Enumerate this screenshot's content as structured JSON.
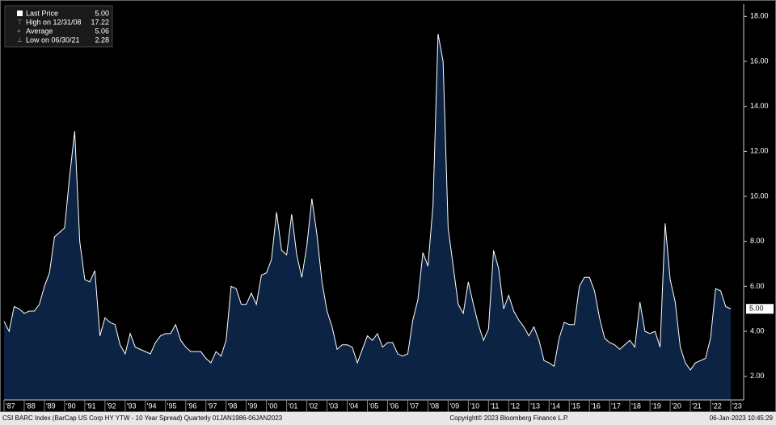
{
  "chart_data": {
    "type": "area",
    "legend": [
      {
        "label": "Last Price",
        "value": "5.00"
      },
      {
        "label": "High on 12/31/08",
        "value": "17.22"
      },
      {
        "label": "Average",
        "value": "5.06"
      },
      {
        "label": "Low on 06/30/21",
        "value": "2.28"
      }
    ],
    "last_label": "5.00",
    "footer_left": "CSI BARC Index (BarCap US Corp HY YTW - 10 Year Spread)  Quarterly 01JAN1986-06JAN2023",
    "footer_center": "Copyright© 2023 Bloomberg Finance L.P.",
    "footer_right": "06-Jan-2023 10:45:29",
    "xlim": [
      1987,
      2023.64
    ],
    "xticks": [
      {
        "value": 1987,
        "label": "'87"
      },
      {
        "value": 1988,
        "label": "'88"
      },
      {
        "value": 1989,
        "label": "'89"
      },
      {
        "value": 1990,
        "label": "'90"
      },
      {
        "value": 1991,
        "label": "'91"
      },
      {
        "value": 1992,
        "label": "'92"
      },
      {
        "value": 1993,
        "label": "'93"
      },
      {
        "value": 1994,
        "label": "'94"
      },
      {
        "value": 1995,
        "label": "'95"
      },
      {
        "value": 1996,
        "label": "'96"
      },
      {
        "value": 1997,
        "label": "'97"
      },
      {
        "value": 1998,
        "label": "'98"
      },
      {
        "value": 1999,
        "label": "'99"
      },
      {
        "value": 2000,
        "label": "'00"
      },
      {
        "value": 2001,
        "label": "'01"
      },
      {
        "value": 2002,
        "label": "'02"
      },
      {
        "value": 2003,
        "label": "'03"
      },
      {
        "value": 2004,
        "label": "'04"
      },
      {
        "value": 2005,
        "label": "'05"
      },
      {
        "value": 2006,
        "label": "'06"
      },
      {
        "value": 2007,
        "label": "'07"
      },
      {
        "value": 2008,
        "label": "'08"
      },
      {
        "value": 2009,
        "label": "'09"
      },
      {
        "value": 2010,
        "label": "'10"
      },
      {
        "value": 2011,
        "label": "'11"
      },
      {
        "value": 2012,
        "label": "'12"
      },
      {
        "value": 2013,
        "label": "'13"
      },
      {
        "value": 2014,
        "label": "'14"
      },
      {
        "value": 2015,
        "label": "'15"
      },
      {
        "value": 2016,
        "label": "'16"
      },
      {
        "value": 2017,
        "label": "'17"
      },
      {
        "value": 2018,
        "label": "'18"
      },
      {
        "value": 2019,
        "label": "'19"
      },
      {
        "value": 2020,
        "label": "'20"
      },
      {
        "value": 2021,
        "label": "'21"
      },
      {
        "value": 2022,
        "label": "'22"
      },
      {
        "value": 2023,
        "label": "'23"
      }
    ],
    "ylim": [
      0.95,
      18.55
    ],
    "yticks": [
      {
        "value": 2,
        "label": "2.00"
      },
      {
        "value": 4,
        "label": "4.00"
      },
      {
        "value": 6,
        "label": "6.00"
      },
      {
        "value": 8,
        "label": "8.00"
      },
      {
        "value": 10,
        "label": "10.00"
      },
      {
        "value": 12,
        "label": "12.00"
      },
      {
        "value": 14,
        "label": "14.00"
      },
      {
        "value": 16,
        "label": "16.00"
      },
      {
        "value": 18,
        "label": "18.00"
      }
    ],
    "x": [
      1987,
      1987.25,
      1987.5,
      1987.75,
      1988,
      1988.25,
      1988.5,
      1988.75,
      1989,
      1989.25,
      1989.5,
      1989.75,
      1990,
      1990.25,
      1990.5,
      1990.75,
      1991,
      1991.25,
      1991.5,
      1991.75,
      1992,
      1992.25,
      1992.5,
      1992.75,
      1993,
      1993.25,
      1993.5,
      1993.75,
      1994,
      1994.25,
      1994.5,
      1994.75,
      1995,
      1995.25,
      1995.5,
      1995.75,
      1996,
      1996.25,
      1996.5,
      1996.75,
      1997,
      1997.25,
      1997.5,
      1997.75,
      1998,
      1998.25,
      1998.5,
      1998.75,
      1999,
      1999.25,
      1999.5,
      1999.75,
      2000,
      2000.25,
      2000.5,
      2000.75,
      2001,
      2001.25,
      2001.5,
      2001.75,
      2002,
      2002.25,
      2002.5,
      2002.75,
      2003,
      2003.25,
      2003.5,
      2003.75,
      2004,
      2004.25,
      2004.5,
      2004.75,
      2005,
      2005.25,
      2005.5,
      2005.75,
      2006,
      2006.25,
      2006.5,
      2006.75,
      2007,
      2007.25,
      2007.5,
      2007.75,
      2008,
      2008.25,
      2008.5,
      2008.75,
      2009,
      2009.25,
      2009.5,
      2009.75,
      2010,
      2010.25,
      2010.5,
      2010.75,
      2011,
      2011.25,
      2011.5,
      2011.75,
      2012,
      2012.25,
      2012.5,
      2012.75,
      2013,
      2013.25,
      2013.5,
      2013.75,
      2014,
      2014.25,
      2014.5,
      2014.75,
      2015,
      2015.25,
      2015.5,
      2015.75,
      2016,
      2016.25,
      2016.5,
      2016.75,
      2017,
      2017.25,
      2017.5,
      2017.75,
      2018,
      2018.25,
      2018.5,
      2018.75,
      2019,
      2019.25,
      2019.5,
      2019.75,
      2020,
      2020.25,
      2020.5,
      2020.75,
      2021,
      2021.25,
      2021.5,
      2021.75,
      2022,
      2022.25,
      2022.5,
      2022.75,
      2023
    ],
    "series": [
      {
        "name": "Last Price",
        "color": "#ffffff",
        "fill": "#0c2344",
        "values": [
          4.45,
          4.0,
          5.1,
          5.0,
          4.8,
          4.9,
          4.9,
          5.2,
          6.0,
          6.6,
          8.2,
          8.4,
          8.6,
          10.9,
          12.9,
          8.0,
          6.3,
          6.2,
          6.7,
          3.8,
          4.6,
          4.4,
          4.3,
          3.4,
          3.0,
          3.9,
          3.3,
          3.2,
          3.1,
          3.0,
          3.5,
          3.8,
          3.9,
          3.9,
          4.3,
          3.6,
          3.3,
          3.1,
          3.1,
          3.1,
          2.8,
          2.6,
          3.1,
          2.9,
          3.6,
          6.0,
          5.9,
          5.2,
          5.2,
          5.7,
          5.2,
          6.5,
          6.6,
          7.2,
          9.3,
          7.6,
          7.4,
          9.2,
          7.4,
          6.4,
          7.8,
          9.9,
          8.3,
          6.2,
          4.9,
          4.2,
          3.2,
          3.4,
          3.4,
          3.3,
          2.6,
          3.2,
          3.8,
          3.6,
          3.9,
          3.3,
          3.5,
          3.5,
          3.0,
          2.9,
          3.0,
          4.5,
          5.4,
          7.5,
          6.9,
          9.6,
          17.22,
          16.0,
          8.6,
          6.9,
          5.2,
          4.8,
          6.2,
          5.2,
          4.3,
          3.6,
          4.1,
          7.6,
          6.8,
          5.0,
          5.6,
          4.9,
          4.5,
          4.2,
          3.8,
          4.2,
          3.6,
          2.7,
          2.6,
          2.45,
          3.7,
          4.4,
          4.3,
          4.3,
          6.0,
          6.4,
          6.4,
          5.8,
          4.6,
          3.7,
          3.5,
          3.4,
          3.2,
          3.4,
          3.6,
          3.3,
          5.3,
          4.0,
          3.9,
          4.0,
          3.3,
          8.8,
          6.3,
          5.3,
          3.3,
          2.6,
          2.28,
          2.6,
          2.7,
          2.8,
          3.7,
          5.9,
          5.8,
          5.1,
          5.0
        ]
      }
    ]
  }
}
